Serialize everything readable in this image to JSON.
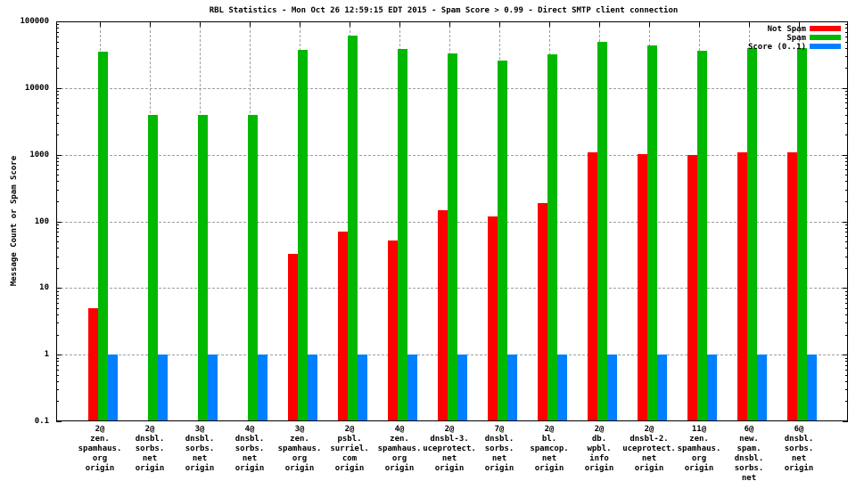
{
  "title": "RBL Statistics - Mon Oct 26 12:59:15 EDT 2015 - Spam Score > 0.99 - Direct SMTP client connection",
  "chart_data": {
    "type": "bar",
    "title": "RBL Statistics - Mon Oct 26 12:59:15 EDT 2015 - Spam Score > 0.99 - Direct SMTP client connection",
    "ylabel": "Message Count or Spam Score",
    "xlabel": "",
    "y_scale": "log",
    "ylim": [
      0.1,
      100000
    ],
    "ytick_values": [
      0.1,
      1,
      10,
      100,
      1000,
      10000,
      100000
    ],
    "ytick_labels": [
      "0.1",
      "1",
      "10",
      "100",
      "1000",
      "10000",
      "100000"
    ],
    "grid": true,
    "legend_position": "top-right-inside",
    "categories": [
      "2@ zen.spamhaus.org origin",
      "2@ dnsbl.sorbs.net origin",
      "3@ dnsbl.sorbs.net origin",
      "4@ dnsbl.sorbs.net origin",
      "3@ zen.spamhaus.org origin",
      "2@ psbl.surriel.com origin",
      "4@ zen.spamhaus.org origin",
      "2@ dnsbl-3.uceprotect.net origin",
      "7@ dnsbl.sorbs.net origin",
      "2@ bl.spamcop.net origin",
      "2@ db.wpbl.info origin",
      "2@ dnsbl-2.uceprotect.net origin",
      "11@ zen.spamhaus.org origin",
      "6@ new.spam.dnsbl.sorbs.net origin",
      "6@ dnsbl.sorbs.net origin"
    ],
    "category_label_lines": [
      [
        "2@",
        "zen.",
        "spamhaus.",
        "org",
        "origin"
      ],
      [
        "2@",
        "dnsbl.",
        "sorbs.",
        "net",
        "origin"
      ],
      [
        "3@",
        "dnsbl.",
        "sorbs.",
        "net",
        "origin"
      ],
      [
        "4@",
        "dnsbl.",
        "sorbs.",
        "net",
        "origin"
      ],
      [
        "3@",
        "zen.",
        "spamhaus.",
        "org",
        "origin"
      ],
      [
        "2@",
        "psbl.",
        "surriel.",
        "com",
        "origin"
      ],
      [
        "4@",
        "zen.",
        "spamhaus.",
        "org",
        "origin"
      ],
      [
        "2@",
        "dnsbl-3.",
        "uceprotect.",
        "net",
        "origin"
      ],
      [
        "7@",
        "dnsbl.",
        "sorbs.",
        "net",
        "origin"
      ],
      [
        "2@",
        "bl.",
        "spamcop.",
        "net",
        "origin"
      ],
      [
        "2@",
        "db.",
        "wpbl.",
        "info",
        "origin"
      ],
      [
        "2@",
        "dnsbl-2.",
        "uceprotect.",
        "net",
        "origin"
      ],
      [
        "11@",
        "zen.",
        "spamhaus.",
        "org",
        "origin"
      ],
      [
        "6@",
        "new.",
        "spam.",
        "dnsbl.",
        "sorbs.",
        "net",
        "origin"
      ],
      [
        "6@",
        "dnsbl.",
        "sorbs.",
        "net",
        "origin"
      ]
    ],
    "series": [
      {
        "name": "Not Spam",
        "color": "#ff0000",
        "values": [
          5,
          0,
          0,
          0,
          33,
          70,
          52,
          145,
          120,
          190,
          1100,
          1030,
          1000,
          1100,
          1100
        ]
      },
      {
        "name": "Spam",
        "color": "#00b800",
        "values": [
          35000,
          3900,
          3900,
          3900,
          37000,
          61000,
          38000,
          33000,
          26000,
          32000,
          50000,
          43000,
          36000,
          40000,
          40000
        ]
      },
      {
        "name": "Score (0..1)",
        "color": "#0080ff",
        "values": [
          1,
          1,
          1,
          1,
          1,
          1,
          1,
          1,
          1,
          1,
          1,
          1,
          1,
          1,
          1
        ]
      }
    ]
  },
  "colors": {
    "background": "#ffffff",
    "border": "#000000",
    "grid": "#9e9e9e",
    "not_spam": "#ff0000",
    "spam": "#00b800",
    "score": "#0080ff"
  }
}
